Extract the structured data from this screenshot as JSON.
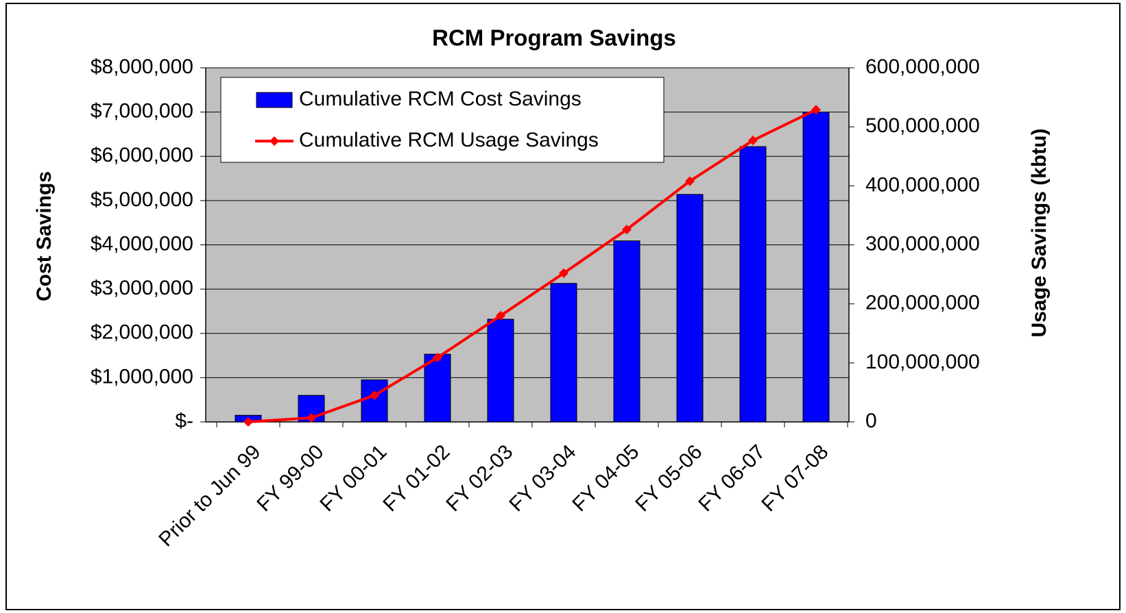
{
  "chart_data": {
    "type": "bar",
    "title": "RCM Program Savings",
    "y_label": "Cost Savings",
    "y2_label": "Usage Savings (kbtu)",
    "categories": [
      "Prior to Jun 99",
      "FY 99-00",
      "FY 00-01",
      "FY 01-02",
      "FY 02-03",
      "FY 03-04",
      "FY 04-05",
      "FY 05-06",
      "FY 06-07",
      "FY 07-08"
    ],
    "series": [
      {
        "name": "Cumulative RCM Cost Savings",
        "type": "bar",
        "color": "#0000ff",
        "values": [
          150000,
          600000,
          950000,
          1530000,
          2320000,
          3130000,
          4090000,
          5140000,
          6220000,
          7000000
        ]
      },
      {
        "name": "Cumulative RCM Usage Savings",
        "type": "line",
        "axis": "y2",
        "color": "#ff0000",
        "values": [
          0,
          7000000,
          45000000,
          109000000,
          180000000,
          252000000,
          326000000,
          408000000,
          477000000,
          529000000
        ]
      }
    ],
    "ylim": [
      0,
      8000000
    ],
    "yticks": [
      {
        "value": 0,
        "label": "$-"
      },
      {
        "value": 1000000,
        "label": "$1,000,000"
      },
      {
        "value": 2000000,
        "label": "$2,000,000"
      },
      {
        "value": 3000000,
        "label": "$3,000,000"
      },
      {
        "value": 4000000,
        "label": "$4,000,000"
      },
      {
        "value": 5000000,
        "label": "$5,000,000"
      },
      {
        "value": 6000000,
        "label": "$6,000,000"
      },
      {
        "value": 7000000,
        "label": "$7,000,000"
      },
      {
        "value": 8000000,
        "label": "$8,000,000"
      }
    ],
    "y2lim": [
      0,
      600000000
    ],
    "y2ticks": [
      0,
      {
        "value": 100000000,
        "label": "100,000,000"
      },
      {
        "value": 200000000,
        "label": "200,000,000"
      },
      {
        "value": 300000000,
        "label": "300,000,000"
      },
      {
        "value": 400000000,
        "label": "400,000,000"
      },
      {
        "value": 500000000,
        "label": "500,000,000"
      },
      {
        "value": 600000000,
        "label": "600,000,000"
      }
    ],
    "grid": true,
    "legend": "upper left"
  }
}
